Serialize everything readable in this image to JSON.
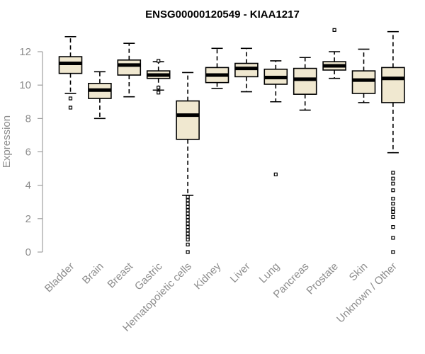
{
  "chart_data": {
    "type": "boxplot",
    "title": "ENSG00000120549 - KIAA1217",
    "xlabel": "",
    "ylabel": "Expression",
    "ylim": [
      0,
      13.5
    ],
    "yticks": [
      0,
      2,
      4,
      6,
      8,
      10,
      12
    ],
    "box_color": "#f0e8d0",
    "categories": [
      "Bladder",
      "Brain",
      "Breast",
      "Gastric",
      "Hematopoietic cells",
      "Kidney",
      "Liver",
      "Lung",
      "Pancreas",
      "Prostate",
      "Skin",
      "Unknown / Other"
    ],
    "boxes": [
      {
        "name": "Bladder",
        "whisker_low": 9.5,
        "q1": 10.7,
        "median": 11.3,
        "q3": 11.7,
        "whisker_high": 12.9,
        "outliers": [
          9.2,
          8.65
        ]
      },
      {
        "name": "Brain",
        "whisker_low": 8.0,
        "q1": 9.2,
        "median": 9.7,
        "q3": 10.1,
        "whisker_high": 10.8,
        "outliers": []
      },
      {
        "name": "Breast",
        "whisker_low": 9.3,
        "q1": 10.6,
        "median": 11.2,
        "q3": 11.5,
        "whisker_high": 12.5,
        "outliers": []
      },
      {
        "name": "Gastric",
        "whisker_low": 9.7,
        "q1": 10.4,
        "median": 10.6,
        "q3": 10.85,
        "whisker_high": 11.4,
        "outliers": [
          11.45,
          9.85,
          9.55
        ]
      },
      {
        "name": "Hematopoietic cells",
        "whisker_low": 3.4,
        "q1": 6.75,
        "median": 8.2,
        "q3": 9.05,
        "whisker_high": 10.75,
        "outliers": [
          3.3,
          3.1,
          2.9,
          2.7,
          2.5,
          2.3,
          2.1,
          1.9,
          1.7,
          1.5,
          1.3,
          1.1,
          0.9,
          0.75,
          0.45,
          0.0
        ]
      },
      {
        "name": "Kidney",
        "whisker_low": 9.8,
        "q1": 10.15,
        "median": 10.6,
        "q3": 11.05,
        "whisker_high": 12.2,
        "outliers": []
      },
      {
        "name": "Liver",
        "whisker_low": 9.6,
        "q1": 10.5,
        "median": 11.0,
        "q3": 11.3,
        "whisker_high": 12.2,
        "outliers": []
      },
      {
        "name": "Lung",
        "whisker_low": 9.0,
        "q1": 10.05,
        "median": 10.45,
        "q3": 10.95,
        "whisker_high": 11.45,
        "outliers": [
          4.65
        ]
      },
      {
        "name": "Pancreas",
        "whisker_low": 8.5,
        "q1": 9.45,
        "median": 10.35,
        "q3": 11.0,
        "whisker_high": 11.65,
        "outliers": []
      },
      {
        "name": "Prostate",
        "whisker_low": 10.4,
        "q1": 10.9,
        "median": 11.15,
        "q3": 11.4,
        "whisker_high": 12.0,
        "outliers": [
          13.3
        ]
      },
      {
        "name": "Skin",
        "whisker_low": 8.95,
        "q1": 9.5,
        "median": 10.3,
        "q3": 10.85,
        "whisker_high": 12.15,
        "outliers": []
      },
      {
        "name": "Unknown / Other",
        "whisker_low": 5.95,
        "q1": 8.95,
        "median": 10.4,
        "q3": 11.05,
        "whisker_high": 13.2,
        "outliers": [
          4.75,
          4.4,
          4.1,
          3.7,
          3.2,
          2.9,
          2.6,
          2.4,
          2.1,
          1.5,
          0.85,
          0.0
        ]
      }
    ]
  }
}
